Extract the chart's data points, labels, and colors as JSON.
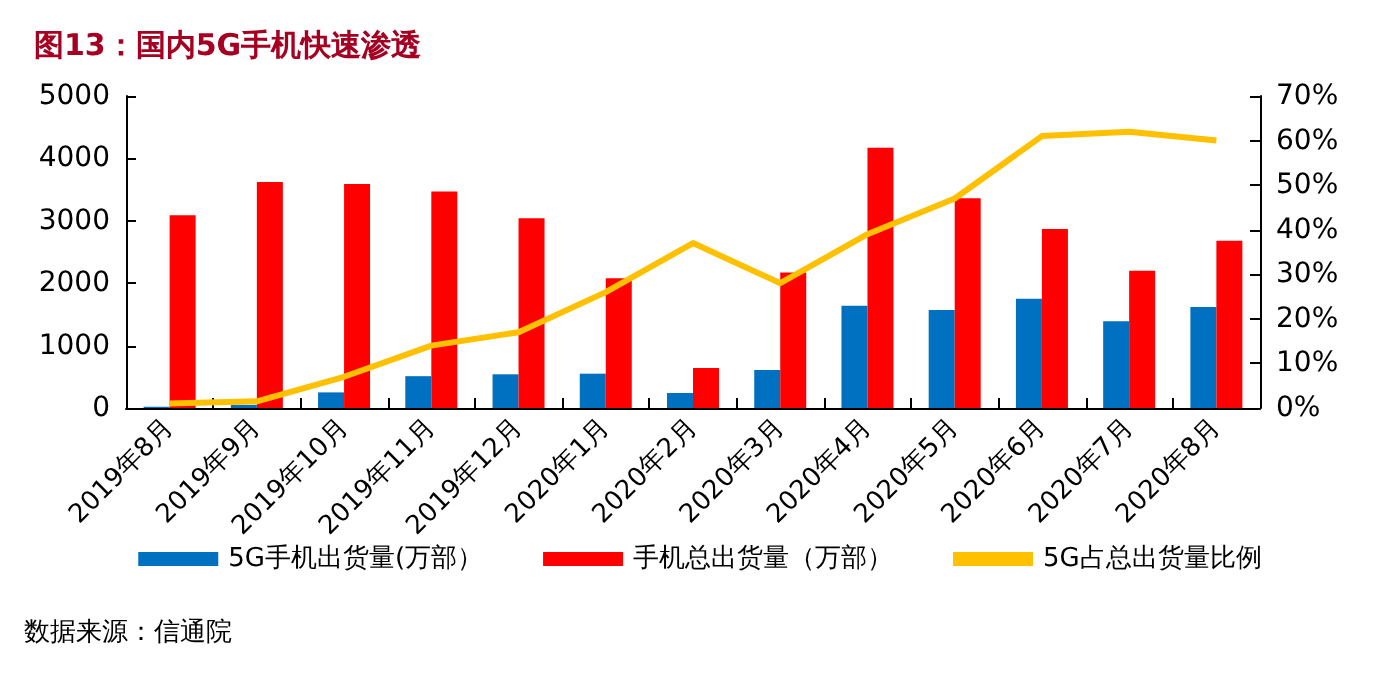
{
  "chart_data": {
    "type": "bar",
    "title": "图13：国内5G手机快速渗透",
    "categories": [
      "2019年8月",
      "2019年9月",
      "2019年10月",
      "2019年11月",
      "2019年12月",
      "2020年1月",
      "2020年2月",
      "2020年3月",
      "2020年4月",
      "2020年5月",
      "2020年6月",
      "2020年7月",
      "2020年8月"
    ],
    "series": [
      {
        "name": "5G手机出货量(万部）",
        "color": "#0070c0",
        "values": [
          20,
          50,
          250,
          510,
          540,
          550,
          240,
          610,
          1640,
          1570,
          1750,
          1390,
          1620
        ]
      },
      {
        "name": "手机总出货量（万部）",
        "color": "#ff0000",
        "values": [
          3090,
          3620,
          3590,
          3470,
          3040,
          2080,
          640,
          2170,
          4170,
          3360,
          2870,
          2200,
          2680
        ]
      },
      {
        "name": "5G占总出货量比例",
        "type": "line",
        "axis": "y2",
        "color": "#ffc000",
        "values": [
          1,
          1.5,
          7,
          14,
          17,
          26,
          37,
          28,
          39,
          47,
          61,
          62,
          60
        ]
      }
    ],
    "ylim": [
      0,
      5000
    ],
    "yticks": [
      0,
      1000,
      2000,
      3000,
      4000,
      5000
    ],
    "y2lim": [
      0,
      70
    ],
    "y2ticks": [
      {
        "value": 0,
        "label": "0%"
      },
      {
        "value": 10,
        "label": "10%"
      },
      {
        "value": 20,
        "label": "20%"
      },
      {
        "value": 30,
        "label": "30%"
      },
      {
        "value": 40,
        "label": "40%"
      },
      {
        "value": 50,
        "label": "50%"
      },
      {
        "value": 60,
        "label": "60%"
      },
      {
        "value": 70,
        "label": "70%"
      }
    ],
    "grid": false,
    "legend": "bottom",
    "marker": "none",
    "line_style": "solid",
    "annotations": [
      "数据来源：信通院"
    ]
  }
}
